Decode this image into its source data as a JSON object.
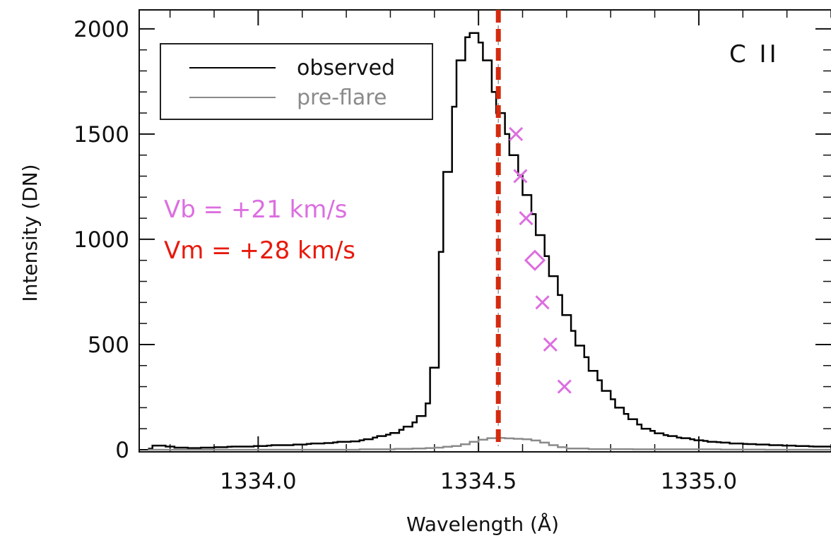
{
  "chart_data": {
    "type": "line",
    "xlabel": "Wavelength (Å)",
    "ylabel": "Intensity (DN)",
    "xlim": [
      1333.73,
      1335.3
    ],
    "ylim": [
      -10,
      2090
    ],
    "xticks": [
      1334.0,
      1334.5,
      1335.0
    ],
    "xtick_labels": [
      "1334.0",
      "1334.5",
      "1335.0"
    ],
    "yticks": [
      0,
      500,
      1000,
      1500,
      2000
    ],
    "ytick_labels": [
      "0",
      "500",
      "1000",
      "1500",
      "2000"
    ],
    "line_label": "C II",
    "legend": {
      "position": "top-left",
      "entries": [
        "observed",
        "pre-flare"
      ]
    },
    "series": [
      {
        "name": "observed",
        "color": "#000000",
        "style": "step",
        "x": [
          1333.75,
          1333.76,
          1333.78,
          1333.79,
          1333.81,
          1333.82,
          1333.84,
          1333.85,
          1333.87,
          1333.88,
          1333.9,
          1333.91,
          1333.93,
          1333.94,
          1333.96,
          1333.97,
          1333.99,
          1334.0,
          1334.02,
          1334.03,
          1334.05,
          1334.06,
          1334.08,
          1334.09,
          1334.11,
          1334.12,
          1334.14,
          1334.15,
          1334.17,
          1334.18,
          1334.2,
          1334.21,
          1334.23,
          1334.24,
          1334.26,
          1334.27,
          1334.29,
          1334.3,
          1334.32,
          1334.33,
          1334.35,
          1334.36,
          1334.38,
          1334.39,
          1334.41,
          1334.42,
          1334.44,
          1334.45,
          1334.47,
          1334.48,
          1334.5,
          1334.51,
          1334.53,
          1334.54,
          1334.56,
          1334.57,
          1334.59,
          1334.6,
          1334.62,
          1334.63,
          1334.65,
          1334.66,
          1334.68,
          1334.69,
          1334.71,
          1334.72,
          1334.74,
          1334.75,
          1334.77,
          1334.78,
          1334.8,
          1334.81,
          1334.83,
          1334.84,
          1334.86,
          1334.87,
          1334.89,
          1334.9,
          1334.92,
          1334.93,
          1334.95,
          1334.96,
          1334.98,
          1334.99,
          1335.01,
          1335.02,
          1335.04,
          1335.05,
          1335.07,
          1335.08,
          1335.1,
          1335.11,
          1335.13,
          1335.14,
          1335.16,
          1335.17,
          1335.19,
          1335.2,
          1335.22,
          1335.23,
          1335.25,
          1335.26,
          1335.28,
          1335.29
        ],
        "values": [
          5,
          20,
          20,
          15,
          10,
          10,
          8,
          8,
          10,
          10,
          12,
          12,
          14,
          15,
          15,
          15,
          18,
          18,
          20,
          22,
          22,
          22,
          25,
          25,
          28,
          30,
          30,
          32,
          35,
          38,
          38,
          40,
          45,
          50,
          58,
          65,
          72,
          80,
          95,
          110,
          130,
          160,
          220,
          390,
          940,
          1320,
          1630,
          1850,
          1960,
          1980,
          1935,
          1850,
          1700,
          1600,
          1500,
          1400,
          1305,
          1210,
          1120,
          1020,
          920,
          825,
          735,
          640,
          565,
          495,
          440,
          375,
          330,
          280,
          240,
          200,
          170,
          145,
          120,
          100,
          90,
          78,
          70,
          65,
          58,
          55,
          50,
          45,
          42,
          38,
          36,
          34,
          30,
          30,
          28,
          27,
          25,
          25,
          22,
          22,
          20,
          20,
          18,
          18,
          16,
          15,
          15,
          15
        ]
      },
      {
        "name": "pre-flare",
        "color": "#8a8a8a",
        "style": "step",
        "x": [
          1333.75,
          1333.83,
          1333.91,
          1333.99,
          1334.07,
          1334.15,
          1334.23,
          1334.31,
          1334.35,
          1334.38,
          1334.4,
          1334.42,
          1334.44,
          1334.46,
          1334.48,
          1334.5,
          1334.52,
          1334.54,
          1334.56,
          1334.58,
          1334.6,
          1334.62,
          1334.64,
          1334.66,
          1334.68,
          1334.7,
          1334.75,
          1334.85,
          1334.95,
          1335.05,
          1335.15,
          1335.25,
          1335.3
        ],
        "values": [
          0,
          0,
          0,
          0,
          0,
          0,
          2,
          4,
          6,
          8,
          10,
          14,
          18,
          26,
          38,
          48,
          55,
          56,
          54,
          52,
          50,
          44,
          34,
          22,
          12,
          6,
          3,
          2,
          2,
          1,
          0,
          0,
          0
        ]
      }
    ],
    "reference_line": {
      "x": 1334.545,
      "color": "#d42a0e",
      "style": "dashed"
    },
    "bisector_points": [
      {
        "x": 1334.585,
        "y": 1500,
        "marker": "x"
      },
      {
        "x": 1334.595,
        "y": 1300,
        "marker": "x"
      },
      {
        "x": 1334.608,
        "y": 1100,
        "marker": "x"
      },
      {
        "x": 1334.628,
        "y": 900,
        "marker": "diamond"
      },
      {
        "x": 1334.645,
        "y": 700,
        "marker": "x"
      },
      {
        "x": 1334.663,
        "y": 500,
        "marker": "x"
      },
      {
        "x": 1334.695,
        "y": 300,
        "marker": "x"
      }
    ],
    "annotations": [
      {
        "text": "Vb = +21 km/s",
        "color": "#dc6ee0"
      },
      {
        "text": "Vm = +28 km/s",
        "color": "#e8190c"
      }
    ]
  }
}
